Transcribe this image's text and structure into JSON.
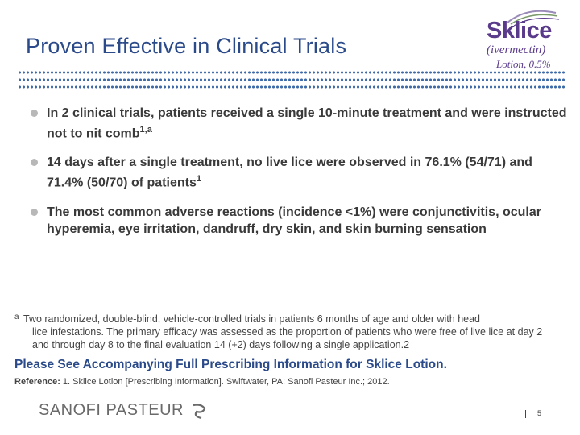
{
  "slide": {
    "title": "Proven Effective in Clinical Trials"
  },
  "logo": {
    "brand": "Sklice",
    "generic": "(ivermectin)",
    "strength": "Lotion, 0.5%",
    "brand_color": "#5a3a8a"
  },
  "bullets": [
    {
      "text": "In 2 clinical trials, patients received a single 10-minute treatment and were instructed not to nit comb",
      "sup": "1,a"
    },
    {
      "text": "14 days after a single treatment, no live lice were observed in 76.1% (54/71) and 71.4% (50/70) of patients",
      "sup": "1"
    },
    {
      "text": "The most common adverse reactions (incidence <1%) were conjunctivitis, ocular hyperemia, eye irritation, dandruff, dry skin, and skin burning sensation",
      "sup": ""
    }
  ],
  "footnote": {
    "mark": "a",
    "line1": "Two randomized, double-blind, vehicle-controlled trials in patients 6 months of age and older with head",
    "rest": "lice infestations. The primary efficacy was assessed as the proportion of patients who were free of live lice at day 2 and through day 8 to the final evaluation 14 (+2) days following a single application.2"
  },
  "prescribing_info": "Please See Accompanying Full Prescribing Information for Sklice Lotion.",
  "reference": {
    "label": "Reference:",
    "text": "1. Sklice  Lotion [Prescribing Information]. Swiftwater, PA: Sanofi Pasteur Inc.; 2012."
  },
  "footer": {
    "company": "SANOFI PASTEUR",
    "page_number": "5"
  },
  "colors": {
    "title": "#2b4a8a",
    "dots": "#3d6aa6",
    "bullet": "#b8b8b8"
  }
}
